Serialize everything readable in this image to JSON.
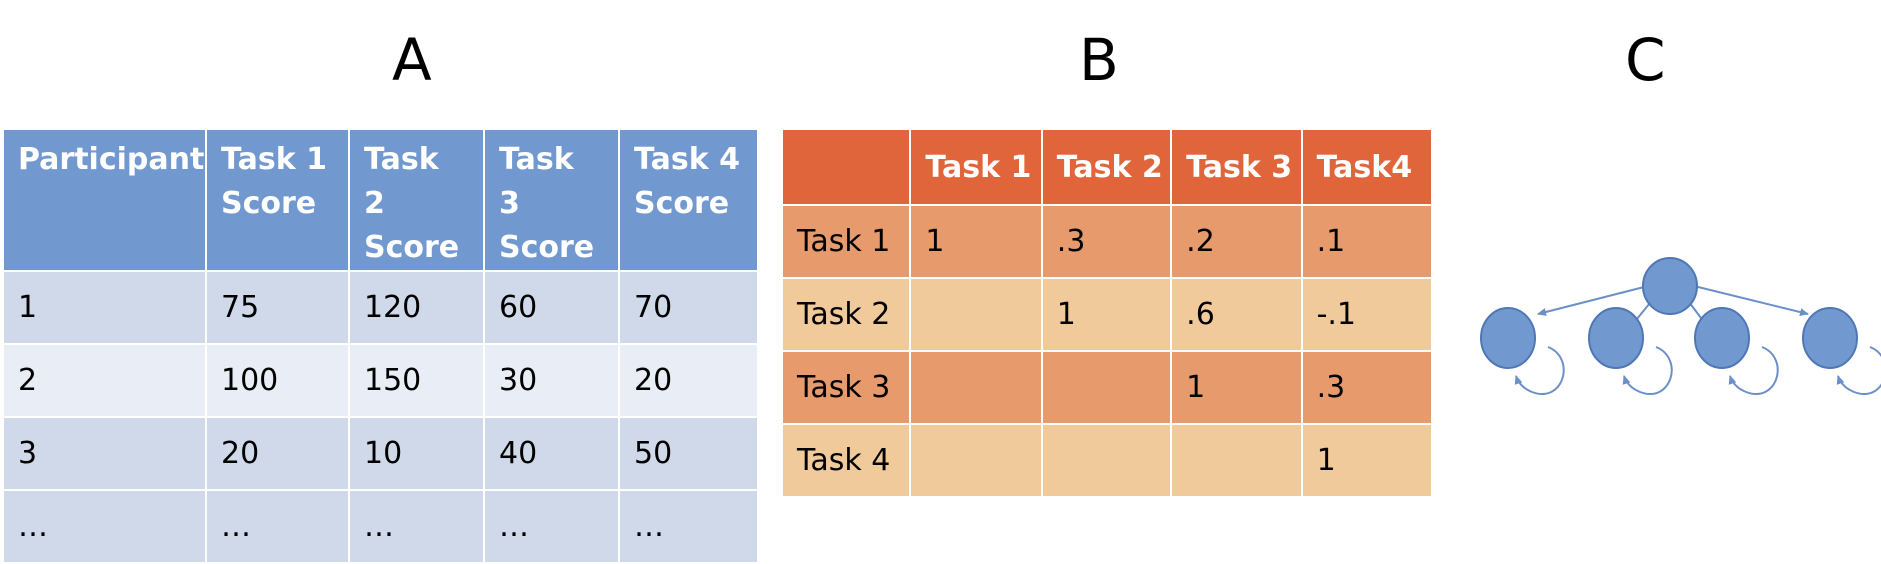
{
  "panels": {
    "a": "A",
    "b": "B",
    "c": "C"
  },
  "table_a": {
    "headers": [
      "Participant",
      "Task 1 Score",
      "Task 2 Score",
      "Task 3 Score",
      "Task 4 Score"
    ],
    "rows": [
      [
        "1",
        "75",
        "120",
        "60",
        "70"
      ],
      [
        "2",
        "100",
        "150",
        "30",
        "20"
      ],
      [
        "3",
        "20",
        "10",
        "40",
        "50"
      ],
      [
        "…",
        "…",
        "…",
        "…",
        "…"
      ]
    ]
  },
  "table_b": {
    "headers": [
      "",
      "Task 1",
      "Task 2",
      "Task 3",
      "Task4"
    ],
    "rows": [
      [
        "Task 1",
        "1",
        ".3",
        ".2",
        ".1"
      ],
      [
        "Task 2",
        "",
        "1",
        ".6",
        "-.1"
      ],
      [
        "Task 3",
        "",
        "",
        "1",
        ".3"
      ],
      [
        "Task 4",
        "",
        "",
        "",
        "1"
      ]
    ]
  },
  "graph_c": {
    "node_color": "#7199cf",
    "root": "root",
    "children": [
      "child-1",
      "child-2",
      "child-3",
      "child-4"
    ],
    "self_loops": true
  }
}
